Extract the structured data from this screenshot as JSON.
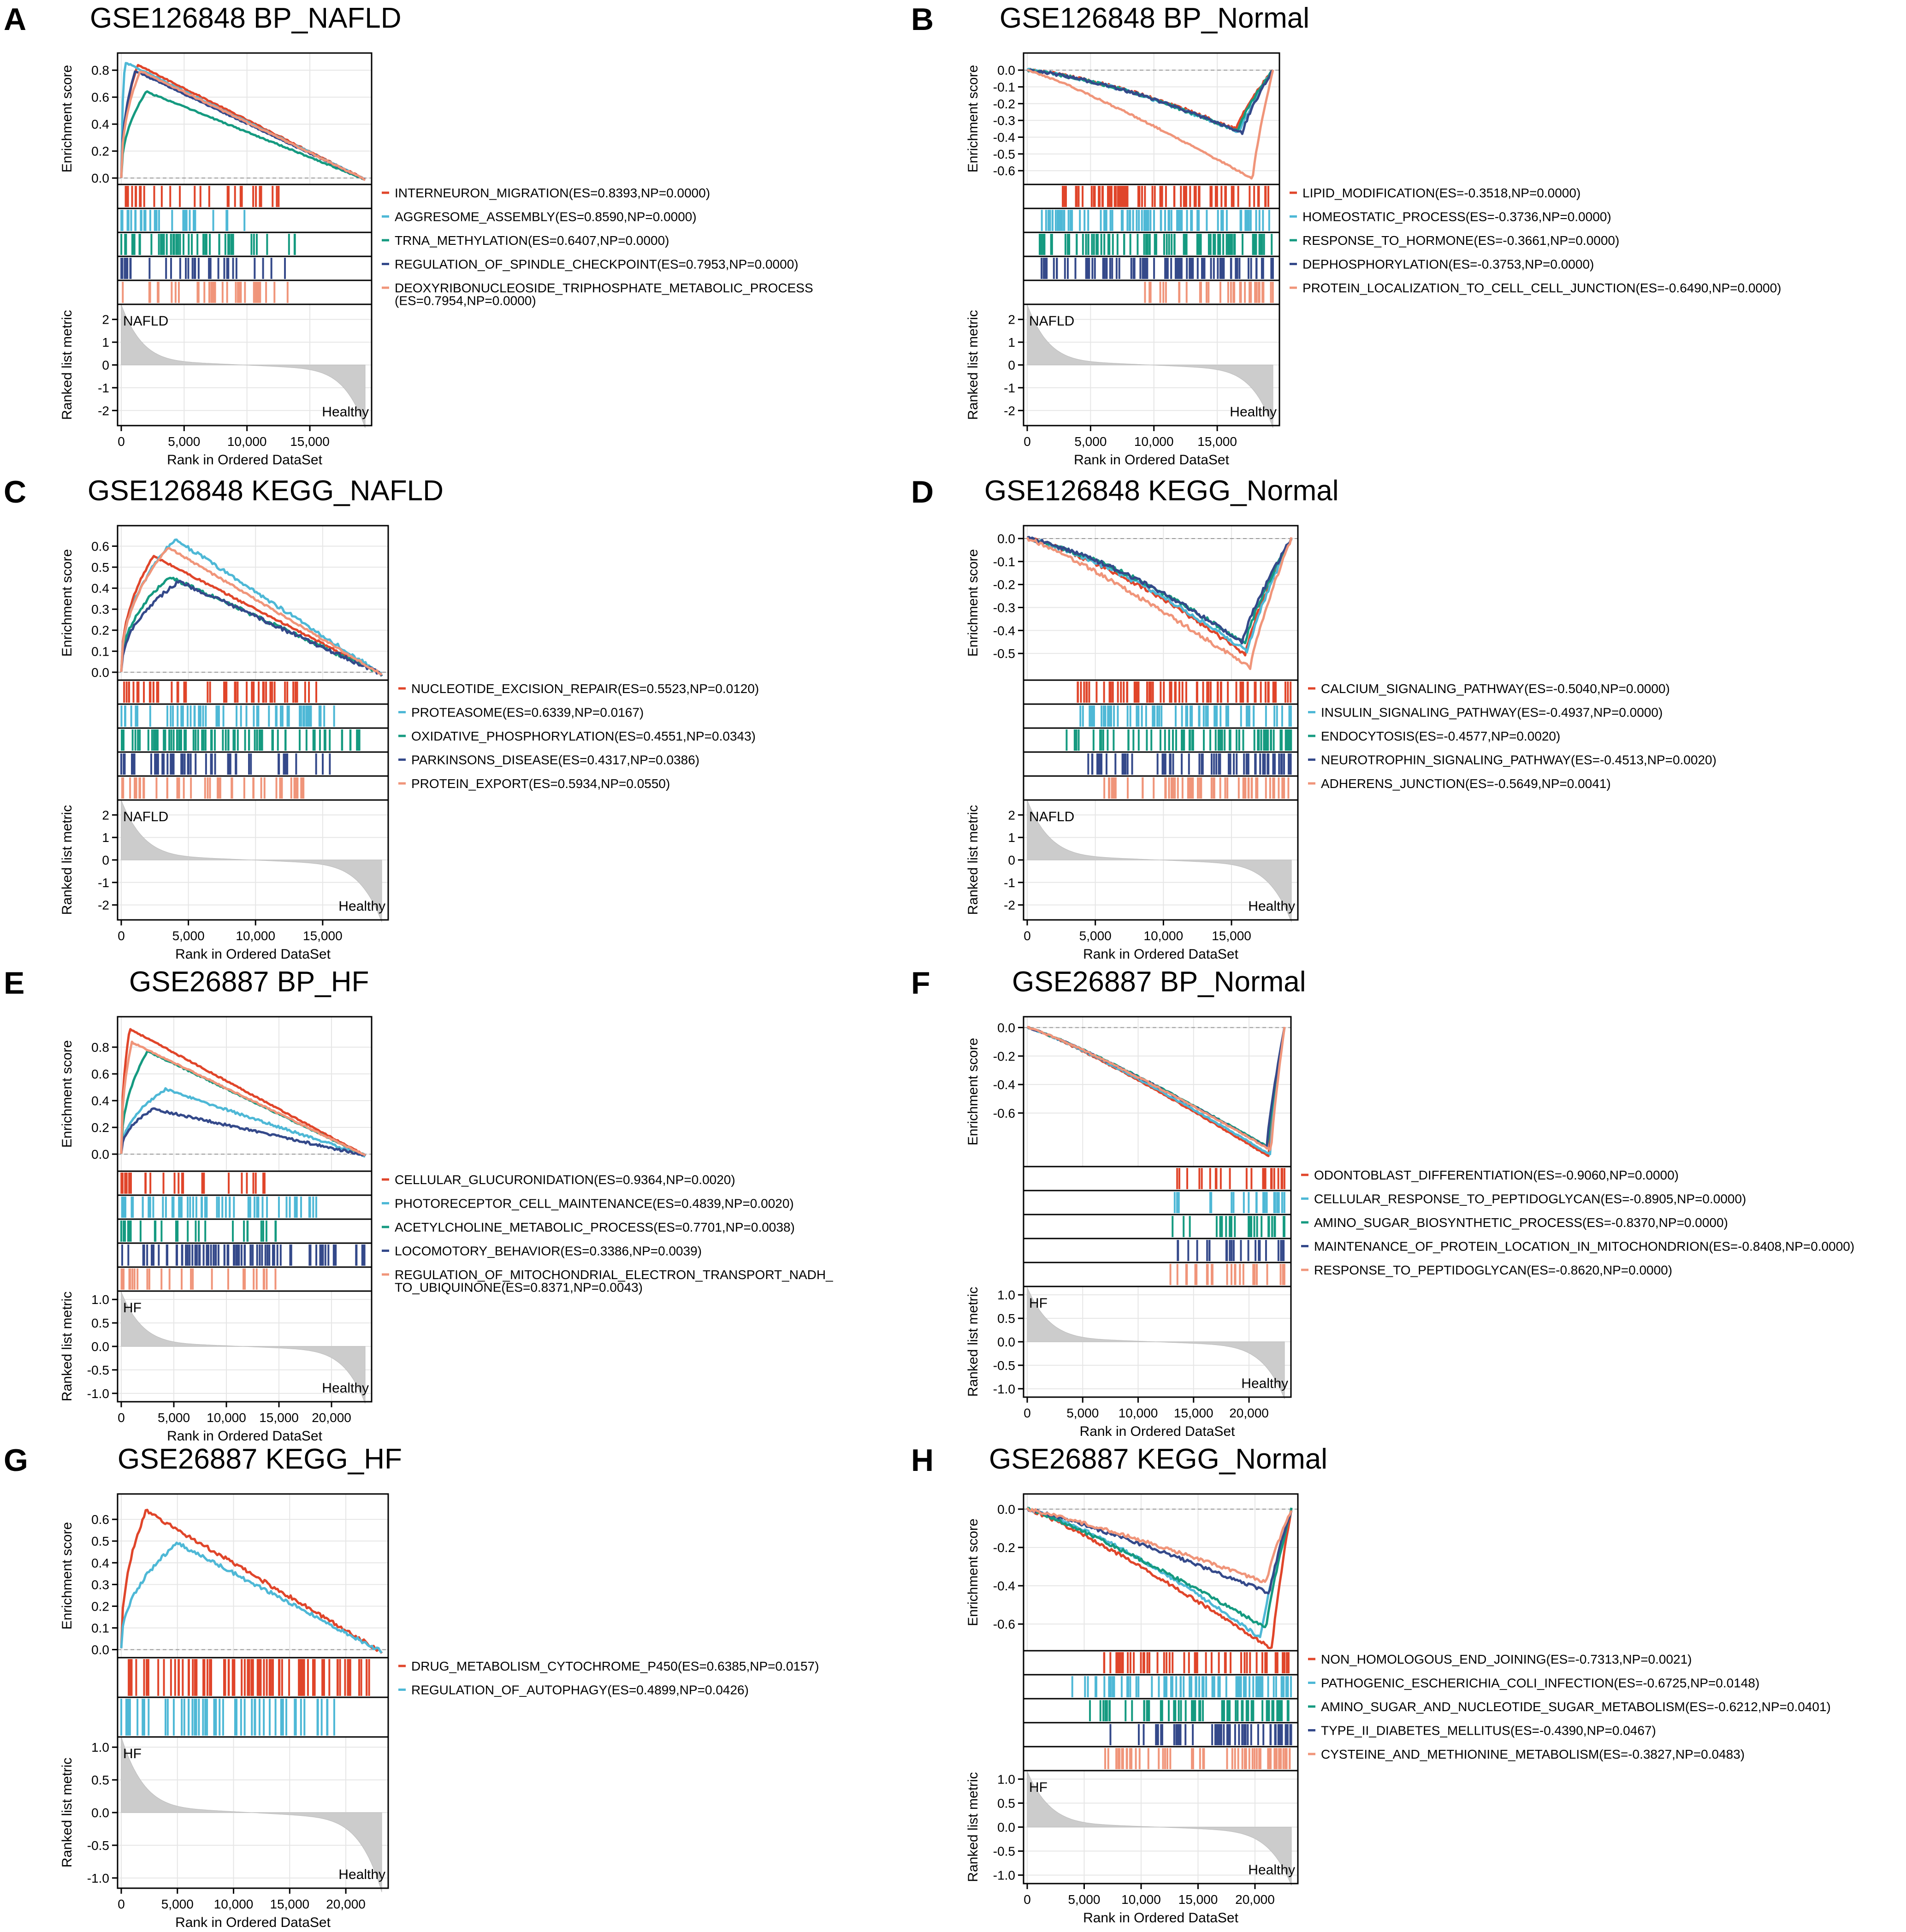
{
  "colors": {
    "red": "#e0452a",
    "cyan": "#4eb8d6",
    "teal": "#159a80",
    "navy": "#34498a",
    "salmon": "#f0957a",
    "metric": "#cccccc",
    "axis": "#000000"
  },
  "common": {
    "y_label_es": "Enrichment score",
    "y_label_metric": "Ranked list metric",
    "x_label": "Rank in Ordered DataSet"
  },
  "chart_data": [
    {
      "panel": "A",
      "type": "line",
      "title": "GSE126848 BP_NAFLD",
      "direction": "pos",
      "xmax": 19400,
      "xticks": [
        0,
        5000,
        10000,
        15000
      ],
      "xtick_labels": [
        "0",
        "5,000",
        "10,000",
        "15,000"
      ],
      "es_range": [
        -0.02,
        0.9
      ],
      "es_ticks": [
        0.0,
        0.2,
        0.4,
        0.6,
        0.8
      ],
      "es_tick_labels": [
        "0.0",
        "0.2",
        "0.4",
        "0.6",
        "0.8"
      ],
      "metric_range": [
        -2.5,
        2.5
      ],
      "metric_ticks": [
        2,
        1,
        0,
        -1,
        -2
      ],
      "metric_tick_labels": [
        "2",
        "1",
        "0",
        "-1",
        "-2"
      ],
      "metric_start": 2.4,
      "metric_end": -2.5,
      "label_top": "NAFLD",
      "label_bottom": "Healthy",
      "series": [
        {
          "color": "red",
          "es": 0.8393,
          "peak": 1300,
          "density": 0.25,
          "legend": "INTERNEURON_MIGRATION(ES=0.8393,NP=0.0000)"
        },
        {
          "color": "cyan",
          "es": 0.859,
          "peak": 300,
          "density": 0.25,
          "legend": "AGGRESOME_ASSEMBLY(ES=0.8590,NP=0.0000)"
        },
        {
          "color": "teal",
          "es": 0.6407,
          "peak": 2000,
          "density": 0.45,
          "legend": "TRNA_METHYLATION(ES=0.6407,NP=0.0000)"
        },
        {
          "color": "navy",
          "es": 0.7953,
          "peak": 1100,
          "density": 0.3,
          "legend": "REGULATION_OF_SPINDLE_CHECKPOINT(ES=0.7953,NP=0.0000)"
        },
        {
          "color": "salmon",
          "es": 0.7954,
          "peak": 1500,
          "density": 0.3,
          "legend": "DEOXYRIBONUCLEOSIDE_TRIPHOSPHATE_METABOLIC_PROCESS",
          "legend2": "(ES=0.7954,NP=0.0000)"
        }
      ]
    },
    {
      "panel": "B",
      "type": "line",
      "title": "GSE126848 BP_Normal",
      "direction": "neg",
      "xmax": 19400,
      "xticks": [
        0,
        5000,
        10000,
        15000
      ],
      "xtick_labels": [
        "0",
        "5,000",
        "10,000",
        "15,000"
      ],
      "es_range": [
        -0.66,
        0.08
      ],
      "es_ticks": [
        0.0,
        -0.1,
        -0.2,
        -0.3,
        -0.4,
        -0.5,
        -0.6
      ],
      "es_tick_labels": [
        "0.0",
        "-0.1",
        "-0.2",
        "-0.3",
        "-0.4",
        "-0.5",
        "-0.6"
      ],
      "metric_range": [
        -2.5,
        2.5
      ],
      "metric_ticks": [
        2,
        1,
        0,
        -1,
        -2
      ],
      "metric_tick_labels": [
        "2",
        "1",
        "0",
        "-1",
        "-2"
      ],
      "metric_start": 2.4,
      "metric_end": -2.5,
      "label_top": "NAFLD",
      "label_bottom": "Healthy",
      "series": [
        {
          "color": "red",
          "es": -0.3518,
          "peak": 16500,
          "density": 0.85,
          "legend": "LIPID_MODIFICATION(ES=-0.3518,NP=0.0000)"
        },
        {
          "color": "cyan",
          "es": -0.3736,
          "peak": 16800,
          "density": 1.0,
          "legend": "HOMEOSTATIC_PROCESS(ES=-0.3736,NP=0.0000)"
        },
        {
          "color": "teal",
          "es": -0.3661,
          "peak": 16600,
          "density": 1.0,
          "legend": "RESPONSE_TO_HORMONE(ES=-0.3661,NP=0.0000)"
        },
        {
          "color": "navy",
          "es": -0.3753,
          "peak": 17000,
          "density": 1.0,
          "legend": "DEPHOSPHORYLATION(ES=-0.3753,NP=0.0000)"
        },
        {
          "color": "salmon",
          "es": -0.649,
          "peak": 17800,
          "density": 0.3,
          "legend": "PROTEIN_LOCALIZATION_TO_CELL_CELL_JUNCTION(ES=-0.6490,NP=0.0000)"
        }
      ]
    },
    {
      "panel": "C",
      "type": "line",
      "title": "GSE126848 KEGG_NAFLD",
      "direction": "pos",
      "xmax": 19400,
      "xticks": [
        0,
        5000,
        10000,
        15000
      ],
      "xtick_labels": [
        "0",
        "5,000",
        "10,000",
        "15,000"
      ],
      "es_range": [
        -0.02,
        0.68
      ],
      "es_ticks": [
        0.0,
        0.1,
        0.2,
        0.3,
        0.4,
        0.5,
        0.6
      ],
      "es_tick_labels": [
        "0.0",
        "0.1",
        "0.2",
        "0.3",
        "0.4",
        "0.5",
        "0.6"
      ],
      "metric_range": [
        -2.5,
        2.5
      ],
      "metric_ticks": [
        2,
        1,
        0,
        -1,
        -2
      ],
      "metric_tick_labels": [
        "2",
        "1",
        "0",
        "-1",
        "-2"
      ],
      "metric_start": 2.4,
      "metric_end": -2.5,
      "label_top": "NAFLD",
      "label_bottom": "Healthy",
      "series": [
        {
          "color": "red",
          "es": 0.5523,
          "peak": 2400,
          "density": 0.5,
          "legend": "NUCLEOTIDE_EXCISION_REPAIR(ES=0.5523,NP=0.0120)"
        },
        {
          "color": "cyan",
          "es": 0.6339,
          "peak": 4000,
          "density": 0.6,
          "legend": "PROTEASOME(ES=0.6339,NP=0.0167)"
        },
        {
          "color": "teal",
          "es": 0.4551,
          "peak": 3600,
          "density": 0.85,
          "legend": "OXIDATIVE_PHOSPHORYLATION(ES=0.4551,NP=0.0343)"
        },
        {
          "color": "navy",
          "es": 0.4317,
          "peak": 4300,
          "density": 0.6,
          "legend": "PARKINSONS_DISEASE(ES=0.4317,NP=0.0386)"
        },
        {
          "color": "salmon",
          "es": 0.5934,
          "peak": 3500,
          "density": 0.4,
          "legend": "PROTEIN_EXPORT(ES=0.5934,NP=0.0550)"
        }
      ]
    },
    {
      "panel": "D",
      "type": "line",
      "title": "GSE126848 KEGG_Normal",
      "direction": "neg",
      "xmax": 19400,
      "xticks": [
        0,
        5000,
        10000,
        15000
      ],
      "xtick_labels": [
        "0",
        "5,000",
        "10,000",
        "15,000"
      ],
      "es_range": [
        -0.6,
        0.04
      ],
      "es_ticks": [
        0.0,
        -0.1,
        -0.2,
        -0.3,
        -0.4,
        -0.5
      ],
      "es_tick_labels": [
        "0.0",
        "-0.1",
        "-0.2",
        "-0.3",
        "-0.4",
        "-0.5"
      ],
      "metric_range": [
        -2.5,
        2.5
      ],
      "metric_ticks": [
        2,
        1,
        0,
        -1,
        -2
      ],
      "metric_tick_labels": [
        "2",
        "1",
        "0",
        "-1",
        "-2"
      ],
      "metric_start": 2.4,
      "metric_end": -2.5,
      "label_top": "NAFLD",
      "label_bottom": "Healthy",
      "series": [
        {
          "color": "red",
          "es": -0.504,
          "peak": 16000,
          "density": 0.8,
          "legend": "CALCIUM_SIGNALING_PATHWAY(ES=-0.5040,NP=0.0000)"
        },
        {
          "color": "cyan",
          "es": -0.4937,
          "peak": 16200,
          "density": 0.75,
          "legend": "INSULIN_SIGNALING_PATHWAY(ES=-0.4937,NP=0.0000)"
        },
        {
          "color": "teal",
          "es": -0.4577,
          "peak": 16000,
          "density": 0.85,
          "legend": "ENDOCYTOSIS(ES=-0.4577,NP=0.0020)"
        },
        {
          "color": "navy",
          "es": -0.4513,
          "peak": 15800,
          "density": 0.75,
          "legend": "NEUROTROPHIN_SIGNALING_PATHWAY(ES=-0.4513,NP=0.0020)"
        },
        {
          "color": "salmon",
          "es": -0.5649,
          "peak": 16400,
          "density": 0.6,
          "legend": "ADHERENS_JUNCTION(ES=-0.5649,NP=0.0041)"
        }
      ]
    },
    {
      "panel": "E",
      "type": "line",
      "title": "GSE26887 BP_HF",
      "direction": "pos",
      "xmax": 23200,
      "xticks": [
        0,
        5000,
        10000,
        15000,
        20000
      ],
      "xtick_labels": [
        "0",
        "5,000",
        "10,000",
        "15,000",
        "20,000"
      ],
      "es_range": [
        -0.1,
        1.0
      ],
      "es_ticks": [
        0.0,
        0.2,
        0.4,
        0.6,
        0.8
      ],
      "es_tick_labels": [
        "0.0",
        "0.2",
        "0.4",
        "0.6",
        "0.8"
      ],
      "metric_range": [
        -1.1,
        1.1
      ],
      "metric_ticks": [
        1.0,
        0.5,
        0.0,
        -0.5,
        -1.0
      ],
      "metric_tick_labels": [
        "1.0",
        "0.5",
        "0.0",
        "-0.5",
        "-1.0"
      ],
      "metric_start": 1.05,
      "metric_end": -1.1,
      "label_top": "HF",
      "label_bottom": "Healthy",
      "series": [
        {
          "color": "red",
          "es": 0.9364,
          "peak": 800,
          "density": 0.15,
          "legend": "CELLULAR_GLUCURONIDATION(ES=0.9364,NP=0.0020)"
        },
        {
          "color": "cyan",
          "es": 0.4839,
          "peak": 4200,
          "density": 0.6,
          "legend": "PHOTORECEPTOR_CELL_MAINTENANCE(ES=0.4839,NP=0.0020)"
        },
        {
          "color": "teal",
          "es": 0.7701,
          "peak": 2500,
          "density": 0.2,
          "legend": "ACETYLCHOLINE_METABOLIC_PROCESS(ES=0.7701,NP=0.0038)"
        },
        {
          "color": "navy",
          "es": 0.3386,
          "peak": 3000,
          "density": 1.0,
          "legend": "LOCOMOTORY_BEHAVIOR(ES=0.3386,NP=0.0039)"
        },
        {
          "color": "salmon",
          "es": 0.8371,
          "peak": 1000,
          "density": 0.2,
          "legend": "REGULATION_OF_MITOCHONDRIAL_ELECTRON_TRANSPORT_NADH_",
          "legend2": "TO_UBIQUINONE(ES=0.8371,NP=0.0043)"
        }
      ]
    },
    {
      "panel": "F",
      "type": "line",
      "title": "GSE26887 BP_Normal",
      "direction": "neg",
      "xmax": 23200,
      "xticks": [
        0,
        5000,
        10000,
        15000,
        20000
      ],
      "xtick_labels": [
        "0",
        "5,000",
        "10,000",
        "15,000",
        "20,000"
      ],
      "es_range": [
        -0.95,
        0.05
      ],
      "es_ticks": [
        0.0,
        -0.2,
        -0.4,
        -0.6
      ],
      "es_tick_labels": [
        "0.0",
        "-0.2",
        "-0.4",
        "-0.6"
      ],
      "metric_range": [
        -1.1,
        1.1
      ],
      "metric_ticks": [
        1.0,
        0.5,
        0.0,
        -0.5,
        -1.0
      ],
      "metric_tick_labels": [
        "1.0",
        "0.5",
        "0.0",
        "-0.5",
        "-1.0"
      ],
      "metric_start": 1.05,
      "metric_end": -1.1,
      "label_top": "HF",
      "label_bottom": "Healthy",
      "series": [
        {
          "color": "red",
          "es": -0.906,
          "peak": 21800,
          "density": 0.15,
          "legend": "ODONTOBLAST_DIFFERENTIATION(ES=-0.9060,NP=0.0000)"
        },
        {
          "color": "cyan",
          "es": -0.8905,
          "peak": 21900,
          "density": 0.15,
          "legend": "CELLULAR_RESPONSE_TO_PEPTIDOGLYCAN(ES=-0.8905,NP=0.0000)"
        },
        {
          "color": "teal",
          "es": -0.837,
          "peak": 21700,
          "density": 0.2,
          "legend": "AMINO_SUGAR_BIOSYNTHETIC_PROCESS(ES=-0.8370,NP=0.0000)"
        },
        {
          "color": "navy",
          "es": -0.8408,
          "peak": 21600,
          "density": 0.15,
          "legend": "MAINTENANCE_OF_PROTEIN_LOCATION_IN_MITOCHONDRION(ES=-0.8408,NP=0.0000)"
        },
        {
          "color": "salmon",
          "es": -0.862,
          "peak": 22000,
          "density": 0.2,
          "legend": "RESPONSE_TO_PEPTIDOGLYCAN(ES=-0.8620,NP=0.0000)"
        }
      ]
    },
    {
      "panel": "G",
      "type": "line",
      "title": "GSE26887 KEGG_HF",
      "direction": "pos",
      "xmax": 23200,
      "xticks": [
        0,
        5000,
        10000,
        15000,
        20000
      ],
      "xtick_labels": [
        "0",
        "5,000",
        "10,000",
        "15,000",
        "20,000"
      ],
      "es_range": [
        -0.02,
        0.7
      ],
      "es_ticks": [
        0.0,
        0.1,
        0.2,
        0.3,
        0.4,
        0.5,
        0.6
      ],
      "es_tick_labels": [
        "0.0",
        "0.1",
        "0.2",
        "0.3",
        "0.4",
        "0.5",
        "0.6"
      ],
      "metric_range": [
        -1.1,
        1.1
      ],
      "metric_ticks": [
        1.0,
        0.5,
        0.0,
        -0.5,
        -1.0
      ],
      "metric_tick_labels": [
        "1.0",
        "0.5",
        "0.0",
        "-0.5",
        "-1.0"
      ],
      "metric_start": 1.05,
      "metric_end": -1.1,
      "label_top": "HF",
      "label_bottom": "Healthy",
      "series": [
        {
          "color": "red",
          "es": 0.6385,
          "peak": 2200,
          "density": 0.9,
          "legend": "DRUG_METABOLISM_CYTOCHROME_P450(ES=0.6385,NP=0.0157)"
        },
        {
          "color": "cyan",
          "es": 0.4899,
          "peak": 5000,
          "density": 0.6,
          "legend": "REGULATION_OF_AUTOPHAGY(ES=0.4899,NP=0.0426)"
        }
      ]
    },
    {
      "panel": "H",
      "type": "line",
      "title": "GSE26887 KEGG_Normal",
      "direction": "neg",
      "xmax": 23200,
      "xticks": [
        0,
        5000,
        10000,
        15000,
        20000
      ],
      "xtick_labels": [
        "0",
        "5,000",
        "10,000",
        "15,000",
        "20,000"
      ],
      "es_range": [
        -0.72,
        0.06
      ],
      "es_ticks": [
        0.0,
        -0.2,
        -0.4,
        -0.6
      ],
      "es_tick_labels": [
        "0.0",
        "-0.2",
        "-0.4",
        "-0.6"
      ],
      "metric_range": [
        -1.1,
        1.1
      ],
      "metric_ticks": [
        1.0,
        0.5,
        0.0,
        -0.5,
        -1.0
      ],
      "metric_tick_labels": [
        "1.0",
        "0.5",
        "0.0",
        "-0.5",
        "-1.0"
      ],
      "metric_start": 1.05,
      "metric_end": -1.1,
      "label_top": "HF",
      "label_bottom": "Healthy",
      "series": [
        {
          "color": "red",
          "es": -0.7313,
          "peak": 21500,
          "density": 0.6,
          "legend": "NON_HOMOLOGOUS_END_JOINING(ES=-0.7313,NP=0.0021)"
        },
        {
          "color": "cyan",
          "es": -0.6725,
          "peak": 20500,
          "density": 0.8,
          "legend": "PATHOGENIC_ESCHERICHIA_COLI_INFECTION(ES=-0.6725,NP=0.0148)"
        },
        {
          "color": "teal",
          "es": -0.6212,
          "peak": 21000,
          "density": 0.7,
          "legend": "AMINO_SUGAR_AND_NUCLEOTIDE_SUGAR_METABOLISM(ES=-0.6212,NP=0.0401)"
        },
        {
          "color": "navy",
          "es": -0.439,
          "peak": 21300,
          "density": 0.6,
          "legend": "TYPE_II_DIABETES_MELLITUS(ES=-0.4390,NP=0.0467)"
        },
        {
          "color": "salmon",
          "es": -0.3827,
          "peak": 21000,
          "density": 0.6,
          "legend": "CYSTEINE_AND_METHIONINE_METABOLISM(ES=-0.3827,NP=0.0483)"
        }
      ]
    }
  ]
}
